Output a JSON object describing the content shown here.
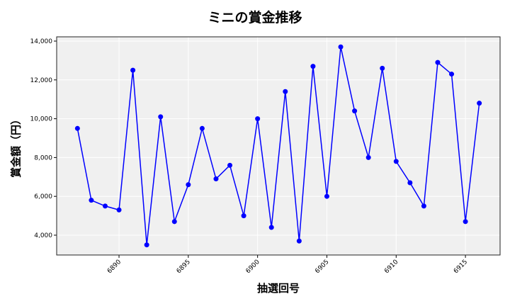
{
  "chart_data": {
    "type": "line",
    "title": "ミニの賞金推移",
    "xlabel": "抽選回号",
    "ylabel": "賞金額（円）",
    "xlim": [
      6885.5,
      6917.5
    ],
    "ylim": [
      2978,
      14219
    ],
    "xticks": [
      6890,
      6895,
      6900,
      6905,
      6910,
      6915
    ],
    "yticks": [
      4000,
      6000,
      8000,
      10000,
      12000,
      14000
    ],
    "ytick_labels": [
      "4,000",
      "6,000",
      "8,000",
      "10,000",
      "12,000",
      "14,000"
    ],
    "grid": true,
    "color": "#0000ff",
    "background": "#f0f0f0",
    "x": [
      6887,
      6888,
      6889,
      6890,
      6891,
      6892,
      6893,
      6894,
      6895,
      6896,
      6897,
      6898,
      6899,
      6900,
      6901,
      6902,
      6903,
      6904,
      6905,
      6906,
      6907,
      6908,
      6909,
      6910,
      6911,
      6912,
      6913,
      6914,
      6915,
      6916
    ],
    "y": [
      9500,
      5800,
      5500,
      5300,
      12500,
      3500,
      10100,
      4700,
      6600,
      9500,
      6900,
      7600,
      5000,
      10000,
      4400,
      11400,
      3700,
      12700,
      6000,
      13700,
      10400,
      8000,
      12600,
      7800,
      6700,
      5500,
      12900,
      12300,
      4700,
      10800
    ]
  }
}
